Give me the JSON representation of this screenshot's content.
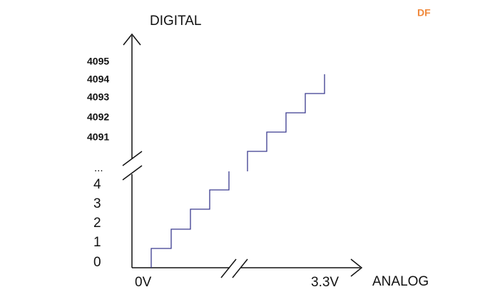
{
  "watermark": "DF",
  "y_axis": {
    "title": "DIGITAL",
    "high_labels": [
      "4095",
      "4094",
      "4093",
      "4092",
      "4091"
    ],
    "ellipsis": "...",
    "low_labels": [
      "4",
      "3",
      "2",
      "1",
      "0"
    ]
  },
  "x_axis": {
    "title": "ANALOG",
    "start_label": "0V",
    "end_label": "3.3V"
  }
}
